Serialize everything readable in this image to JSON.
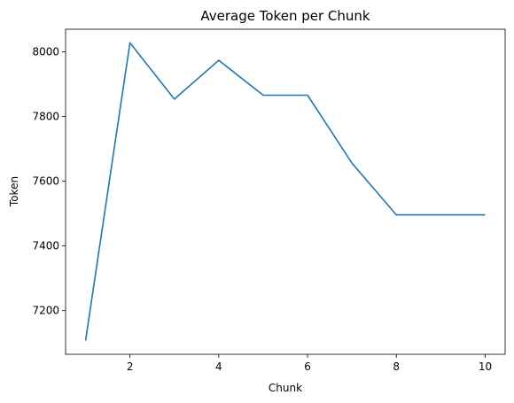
{
  "chart_data": {
    "type": "line",
    "title": "Average Token per Chunk",
    "xlabel": "Chunk",
    "ylabel": "Token",
    "xlim": [
      0.55,
      10.45
    ],
    "ylim": [
      7065,
      8070
    ],
    "xticks": [
      2,
      4,
      6,
      8,
      10
    ],
    "yticks": [
      7200,
      7400,
      7600,
      7800,
      8000
    ],
    "grid": false,
    "line_color": "#1f77b4",
    "series": [
      {
        "x": [
          1,
          2,
          3,
          4,
          5,
          6,
          7,
          8,
          9,
          10
        ],
        "y": [
          7107,
          8028,
          7854,
          7974,
          7866,
          7866,
          7656,
          7496,
          7496,
          7496
        ]
      }
    ]
  }
}
